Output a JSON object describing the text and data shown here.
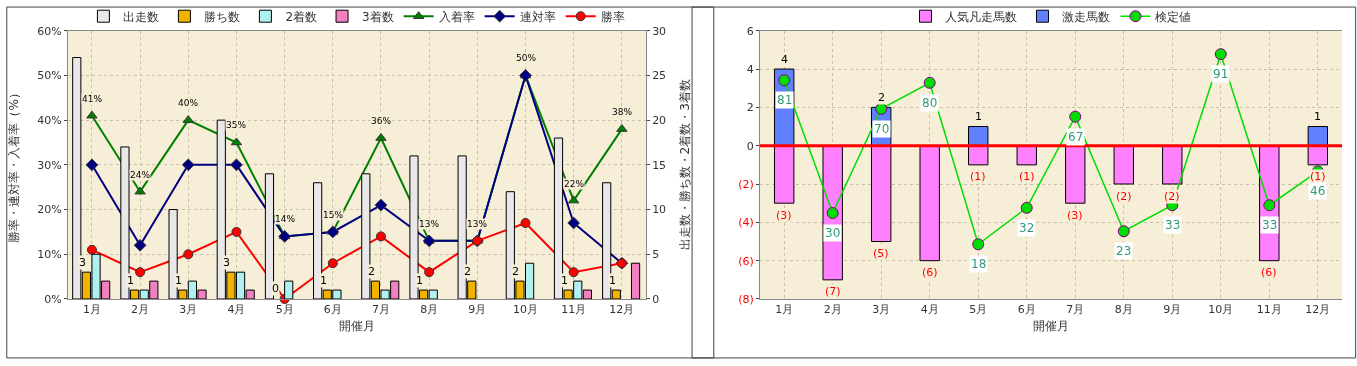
{
  "chart_data": [
    {
      "type": "bar",
      "categories": [
        "1月",
        "2月",
        "3月",
        "4月",
        "5月",
        "6月",
        "7月",
        "8月",
        "9月",
        "10月",
        "11月",
        "12月"
      ],
      "xlabel": "開催月",
      "ylabel": "勝率・連対率・入着率（%）",
      "y2label": "出走数・勝ち数・2着数・3着数",
      "ylim": [
        0,
        60
      ],
      "yticks": [
        {
          "value": 0,
          "label": "0%"
        },
        {
          "value": 10,
          "label": "10%"
        },
        {
          "value": 20,
          "label": "20%"
        },
        {
          "value": 30,
          "label": "30%"
        },
        {
          "value": 40,
          "label": "40%"
        },
        {
          "value": 50,
          "label": "50%"
        },
        {
          "value": 60,
          "label": "60%"
        }
      ],
      "y2lim": [
        0,
        30
      ],
      "y2ticks": [
        0,
        5,
        10,
        15,
        20,
        25,
        30
      ],
      "grid": true,
      "legend": "top",
      "series": [
        {
          "name": "出走数",
          "color": "#e8e8e8",
          "axis": "y2",
          "values": [
            27,
            17,
            10,
            20,
            14,
            13,
            14,
            16,
            16,
            12,
            18,
            13
          ]
        },
        {
          "name": "勝ち数",
          "color": "#f0b400",
          "axis": "y2",
          "values": [
            3,
            1,
            1,
            3,
            0,
            1,
            2,
            1,
            2,
            2,
            1,
            1
          ],
          "value_labels": [
            "3",
            "1",
            "1",
            "3",
            "0",
            "1",
            "2",
            "1",
            "2",
            "2",
            "1",
            "1"
          ]
        },
        {
          "name": "2着数",
          "color": "#b0f0f0",
          "axis": "y2",
          "values": [
            5,
            1,
            2,
            3,
            2,
            1,
            1,
            1,
            0,
            4,
            2,
            0
          ]
        },
        {
          "name": "3着数",
          "color": "#f080c0",
          "axis": "y2",
          "values": [
            2,
            2,
            1,
            1,
            0,
            0,
            2,
            0,
            0,
            0,
            1,
            4
          ]
        },
        {
          "name": "入着率",
          "type": "line",
          "color": "#008000",
          "marker": "triangle",
          "values": [
            41,
            24,
            40,
            35,
            14,
            15,
            36,
            13,
            13,
            50,
            22,
            38
          ],
          "value_labels": [
            "41%",
            "24%",
            "40%",
            "35%",
            "14%",
            "15%",
            "36%",
            "13%",
            "13%",
            "50%",
            "22%",
            "38%"
          ]
        },
        {
          "name": "連対率",
          "type": "line",
          "color": "#000080",
          "marker": "diamond",
          "values": [
            30,
            12,
            30,
            30,
            14,
            15,
            21,
            13,
            13,
            50,
            17,
            8
          ]
        },
        {
          "name": "勝率",
          "type": "line",
          "color": "#ff0000",
          "marker": "circle",
          "values": [
            11,
            6,
            10,
            15,
            0,
            8,
            14,
            6,
            13,
            17,
            6,
            8
          ]
        }
      ]
    },
    {
      "type": "bar",
      "stacked": true,
      "categories": [
        "1月",
        "2月",
        "3月",
        "4月",
        "5月",
        "6月",
        "7月",
        "8月",
        "9月",
        "10月",
        "11月",
        "12月"
      ],
      "xlabel": "開催月",
      "ylim": [
        -8,
        6
      ],
      "yticks": [
        {
          "value": -8,
          "label": "(8)"
        },
        {
          "value": -6,
          "label": "(6)"
        },
        {
          "value": -4,
          "label": "(4)"
        },
        {
          "value": -2,
          "label": "(2)"
        },
        0,
        2,
        4,
        6
      ],
      "y2lim": [
        -3,
        100
      ],
      "grid": true,
      "legend": "top",
      "ref_lines": [
        {
          "axis": "y",
          "value": 0,
          "color": "#ff0000"
        }
      ],
      "series": [
        {
          "name": "人気凡走馬数",
          "color": "#ff80ff",
          "values": [
            -3,
            -7,
            -5,
            -6,
            -1,
            -1,
            -3,
            -2,
            -2,
            0,
            -6,
            -1
          ],
          "value_labels": [
            "(3)",
            "(7)",
            "(5)",
            "(6)",
            "(1)",
            "(1)",
            "(3)",
            "(2)",
            "(2)",
            null,
            "(6)",
            "(1)"
          ]
        },
        {
          "name": "激走馬数",
          "color": "#6080ff",
          "values": [
            4,
            0,
            2,
            0,
            1,
            0,
            0,
            0,
            0,
            0,
            0,
            1
          ],
          "value_labels": [
            "4",
            null,
            "2",
            null,
            "1",
            null,
            null,
            null,
            null,
            null,
            null,
            "1"
          ]
        },
        {
          "name": "検定値",
          "type": "line",
          "axis": "y2",
          "color": "#00dd00",
          "marker": "circle",
          "values": [
            81,
            30,
            70,
            80,
            18,
            32,
            67,
            23,
            33,
            91,
            33,
            46
          ],
          "value_labels": [
            "81",
            "30",
            "70",
            "80",
            "18",
            "32",
            "67",
            "23",
            "33",
            "91",
            "33",
            "46"
          ]
        }
      ]
    }
  ]
}
